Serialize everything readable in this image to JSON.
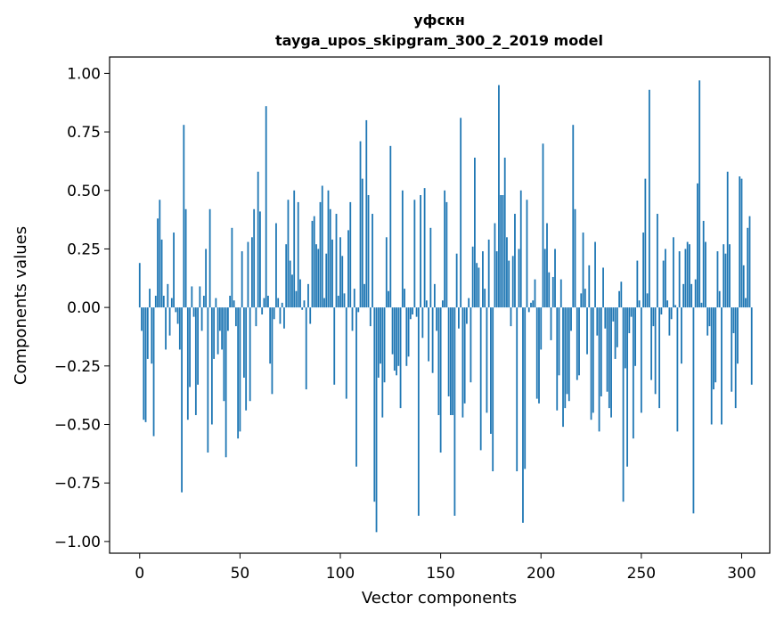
{
  "chart_data": {
    "type": "bar",
    "title": "уфскн",
    "subtitle": "tayga_upos_skipgram_300_2_2019 model",
    "xlabel": "Vector components",
    "ylabel": "Components values",
    "xlim": [
      -15,
      314
    ],
    "ylim": [
      -1.05,
      1.07
    ],
    "xticks": [
      0,
      50,
      100,
      150,
      200,
      250,
      300
    ],
    "yticks": [
      -1.0,
      -0.75,
      -0.5,
      -0.25,
      0.0,
      0.25,
      0.5,
      0.75,
      1.0
    ],
    "ytick_labels": [
      "−1.00",
      "−0.75",
      "−0.50",
      "−0.25",
      "0.00",
      "0.25",
      "0.50",
      "0.75",
      "1.00"
    ],
    "grid": false,
    "bar_color": "#1f77b4",
    "values": [
      0.19,
      -0.1,
      -0.48,
      -0.49,
      -0.22,
      0.08,
      -0.24,
      -0.55,
      0.05,
      0.38,
      0.46,
      0.29,
      0.05,
      -0.18,
      0.1,
      -0.12,
      0.04,
      0.32,
      -0.02,
      -0.07,
      -0.18,
      -0.79,
      0.78,
      0.42,
      -0.48,
      -0.34,
      0.09,
      -0.04,
      -0.46,
      -0.33,
      0.09,
      -0.1,
      0.05,
      0.25,
      -0.62,
      0.42,
      -0.5,
      -0.22,
      0.04,
      -0.2,
      -0.1,
      -0.18,
      -0.4,
      -0.64,
      -0.1,
      0.05,
      0.34,
      0.03,
      -0.08,
      -0.56,
      -0.53,
      0.24,
      -0.3,
      -0.44,
      0.28,
      -0.4,
      0.3,
      0.42,
      -0.08,
      0.58,
      0.41,
      -0.03,
      0.04,
      0.86,
      0.05,
      -0.24,
      -0.37,
      -0.05,
      0.36,
      0.04,
      -0.07,
      0.02,
      -0.09,
      0.27,
      0.46,
      0.2,
      0.14,
      0.5,
      0.07,
      0.45,
      0.12,
      -0.01,
      0.03,
      -0.35,
      0.1,
      -0.07,
      0.37,
      0.39,
      0.27,
      0.25,
      0.45,
      0.52,
      0.04,
      0.23,
      0.5,
      0.42,
      0.29,
      -0.33,
      0.4,
      0.05,
      0.3,
      0.22,
      0.06,
      -0.39,
      0.33,
      0.45,
      -0.1,
      0.08,
      -0.68,
      -0.02,
      0.71,
      0.55,
      0.1,
      0.8,
      0.48,
      -0.08,
      0.4,
      -0.83,
      -0.96,
      -0.3,
      -0.24,
      -0.47,
      -0.32,
      0.3,
      0.07,
      0.69,
      -0.2,
      -0.27,
      -0.29,
      -0.25,
      -0.43,
      0.5,
      0.08,
      -0.25,
      -0.21,
      -0.05,
      -0.03,
      0.46,
      -0.04,
      -0.89,
      0.48,
      -0.13,
      0.51,
      0.03,
      -0.23,
      0.34,
      -0.28,
      0.1,
      -0.1,
      -0.46,
      -0.62,
      0.03,
      0.5,
      0.45,
      -0.38,
      -0.46,
      -0.46,
      -0.89,
      0.23,
      -0.09,
      0.81,
      -0.47,
      -0.41,
      -0.07,
      0.04,
      -0.32,
      0.26,
      0.64,
      0.19,
      0.17,
      -0.61,
      0.24,
      0.08,
      -0.45,
      0.29,
      -0.54,
      -0.7,
      0.36,
      0.24,
      0.95,
      0.48,
      0.48,
      0.64,
      0.3,
      0.2,
      -0.08,
      0.22,
      0.4,
      -0.7,
      0.25,
      0.5,
      -0.92,
      -0.69,
      0.46,
      -0.02,
      0.02,
      0.03,
      0.12,
      -0.39,
      -0.41,
      -0.18,
      0.7,
      0.25,
      0.36,
      0.15,
      -0.14,
      0.13,
      0.25,
      -0.44,
      -0.29,
      0.12,
      -0.51,
      -0.43,
      -0.37,
      -0.4,
      -0.1,
      0.78,
      0.42,
      -0.31,
      -0.29,
      0.06,
      0.32,
      0.08,
      -0.2,
      0.18,
      -0.48,
      -0.45,
      0.28,
      -0.12,
      -0.53,
      -0.38,
      0.17,
      -0.09,
      -0.36,
      -0.43,
      -0.47,
      -0.06,
      -0.22,
      -0.17,
      0.07,
      0.11,
      -0.83,
      -0.26,
      -0.68,
      -0.11,
      -0.04,
      -0.56,
      -0.25,
      0.2,
      0.03,
      -0.45,
      0.32,
      0.55,
      0.06,
      0.93,
      -0.31,
      -0.08,
      -0.37,
      0.4,
      -0.43,
      -0.03,
      0.2,
      0.25,
      0.03,
      -0.12,
      -0.05,
      0.3,
      0.01,
      -0.53,
      0.24,
      -0.24,
      0.1,
      0.25,
      0.28,
      0.27,
      0.1,
      -0.88,
      0.12,
      0.53,
      0.97,
      0.02,
      0.37,
      0.28,
      -0.12,
      -0.08,
      -0.5,
      -0.35,
      -0.32,
      0.24,
      0.07,
      -0.5,
      0.27,
      0.23,
      0.58,
      0.27,
      -0.36,
      -0.11,
      -0.43,
      -0.24,
      0.56,
      0.55,
      0.18,
      0.04,
      0.34,
      0.39,
      -0.33
    ]
  }
}
